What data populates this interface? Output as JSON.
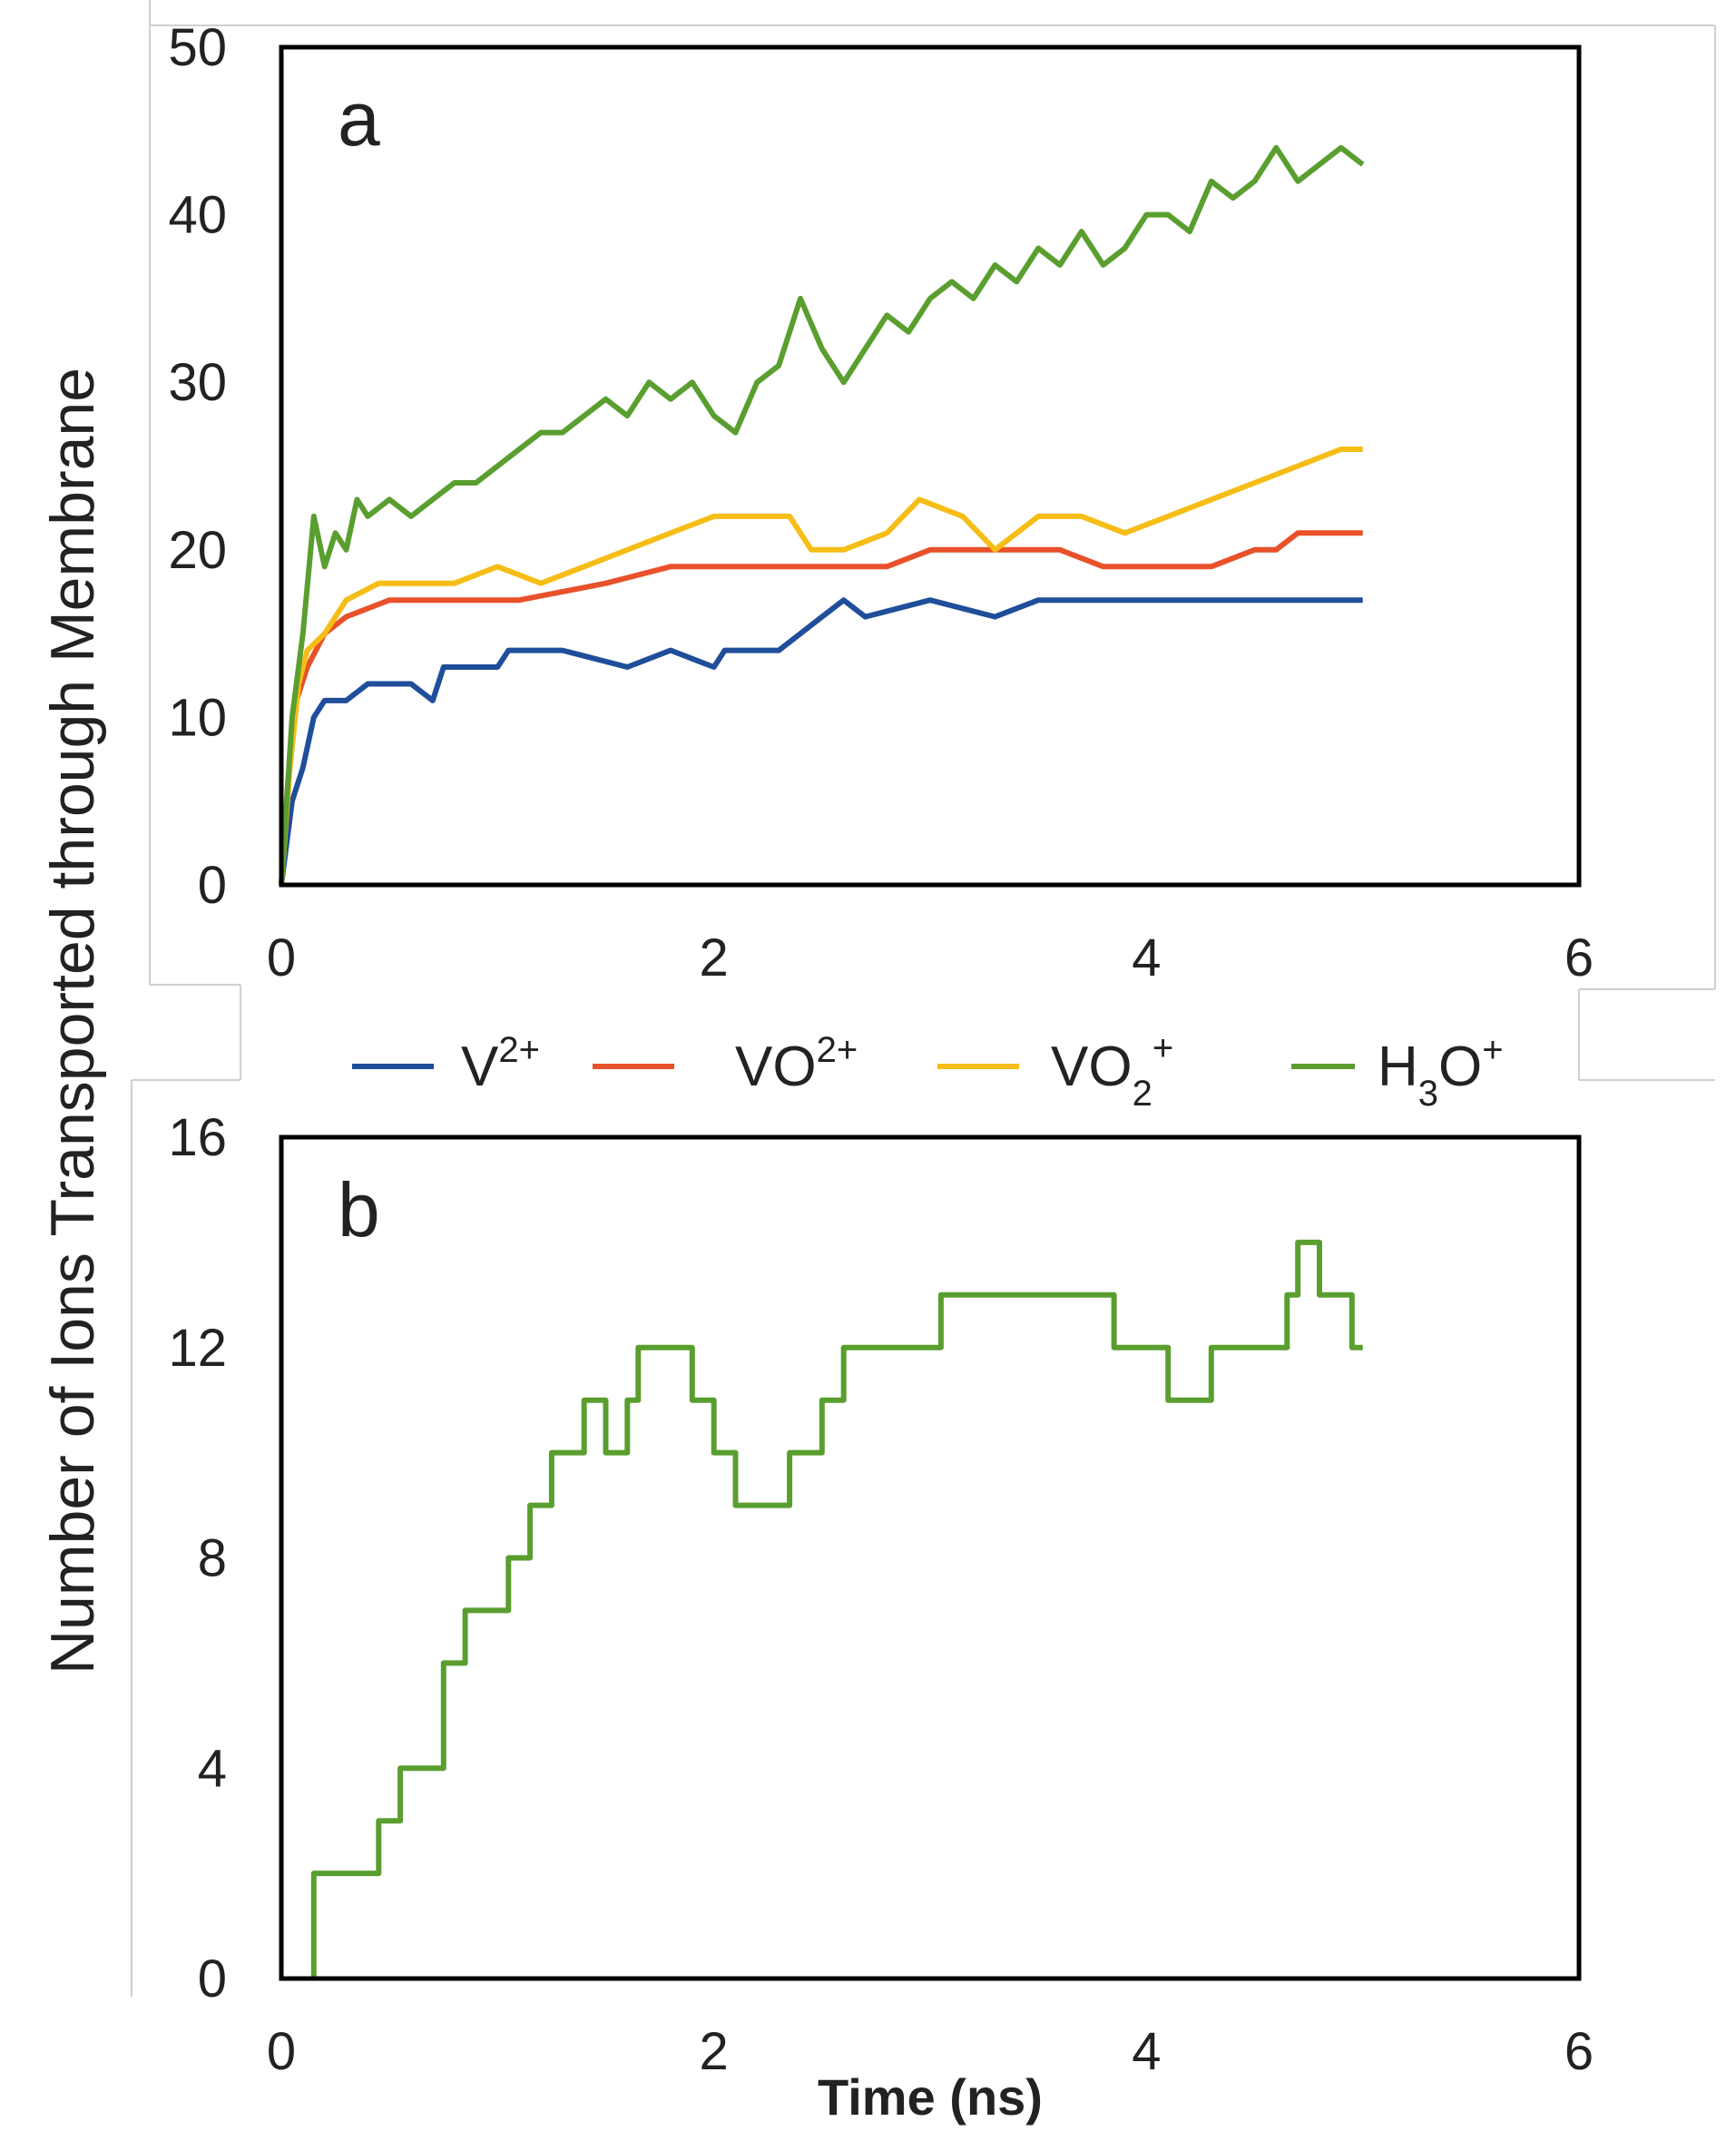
{
  "figure": {
    "ylabel": "Number of Ions Transported through Membrane",
    "xlabel": "Time (ns)"
  },
  "legend": [
    {
      "base": "V",
      "sub": "",
      "sup": "2+",
      "color": "#1f4e9a"
    },
    {
      "base": "VO",
      "sub": "",
      "sup": "2+",
      "color": "#e8512a"
    },
    {
      "base": "VO",
      "sub": "2",
      "sup": "+",
      "color": "#f6bd16"
    },
    {
      "base": "H",
      "sub": "3",
      "sup": "+",
      "base2": "O",
      "color": "#5a9e2f"
    }
  ],
  "chart_data": [
    {
      "type": "line",
      "panel_label": "a",
      "xlim": [
        0,
        6
      ],
      "ylim": [
        0,
        50
      ],
      "xticks": [
        0,
        2,
        4,
        6
      ],
      "yticks": [
        0,
        10,
        20,
        30,
        40,
        50
      ],
      "xlabel": "Time (ns)",
      "ylabel": "Number of Ions Transported through Membrane",
      "series": [
        {
          "name": "V2+",
          "color": "#1f4e9a",
          "x": [
            0,
            0.05,
            0.1,
            0.15,
            0.2,
            0.3,
            0.4,
            0.6,
            0.7,
            0.75,
            1.0,
            1.05,
            1.3,
            1.6,
            1.8,
            2.0,
            2.05,
            2.3,
            2.4,
            2.5,
            2.6,
            2.7,
            3.0,
            3.3,
            3.5,
            4.0,
            4.5,
            5.0
          ],
          "y": [
            0,
            5,
            7,
            10,
            11,
            11,
            12,
            12,
            11,
            13,
            13,
            14,
            14,
            13,
            14,
            13,
            14,
            14,
            15,
            16,
            17,
            16,
            17,
            16,
            17,
            17,
            17,
            17
          ]
        },
        {
          "name": "VO2+",
          "color": "#e8512a",
          "x": [
            0,
            0.03,
            0.07,
            0.12,
            0.2,
            0.3,
            0.5,
            0.8,
            1.1,
            1.5,
            1.8,
            2.1,
            2.5,
            2.8,
            3.0,
            3.3,
            3.6,
            3.8,
            4.0,
            4.3,
            4.5,
            4.6,
            4.7,
            5.0
          ],
          "y": [
            0,
            6,
            11,
            13,
            15,
            16,
            17,
            17,
            17,
            18,
            19,
            19,
            19,
            19,
            20,
            20,
            20,
            19,
            19,
            19,
            20,
            20,
            21,
            21
          ]
        },
        {
          "name": "VO2 +",
          "color": "#f6bd16",
          "x": [
            0,
            0.04,
            0.08,
            0.12,
            0.2,
            0.3,
            0.45,
            0.6,
            0.8,
            1.0,
            1.2,
            1.4,
            1.6,
            1.8,
            2.0,
            2.2,
            2.35,
            2.45,
            2.6,
            2.8,
            2.95,
            3.15,
            3.3,
            3.5,
            3.7,
            3.9,
            4.1,
            4.3,
            4.5,
            4.7,
            4.9,
            5.0
          ],
          "y": [
            0,
            7,
            12,
            14,
            15,
            17,
            18,
            18,
            18,
            19,
            18,
            19,
            20,
            21,
            22,
            22,
            22,
            20,
            20,
            21,
            23,
            22,
            20,
            22,
            22,
            21,
            22,
            23,
            24,
            25,
            26,
            26
          ]
        },
        {
          "name": "H3O+",
          "color": "#5a9e2f",
          "x": [
            0,
            0.05,
            0.1,
            0.15,
            0.2,
            0.25,
            0.3,
            0.35,
            0.4,
            0.5,
            0.6,
            0.7,
            0.8,
            0.9,
            1.0,
            1.1,
            1.2,
            1.3,
            1.4,
            1.5,
            1.6,
            1.7,
            1.8,
            1.9,
            2.0,
            2.1,
            2.2,
            2.3,
            2.4,
            2.5,
            2.6,
            2.7,
            2.8,
            2.9,
            3.0,
            3.1,
            3.2,
            3.3,
            3.4,
            3.5,
            3.6,
            3.7,
            3.8,
            3.9,
            4.0,
            4.1,
            4.2,
            4.3,
            4.4,
            4.5,
            4.6,
            4.7,
            4.8,
            4.9,
            5.0
          ],
          "y": [
            0,
            10,
            15,
            22,
            19,
            21,
            20,
            23,
            22,
            23,
            22,
            23,
            24,
            24,
            25,
            26,
            27,
            27,
            28,
            29,
            28,
            30,
            29,
            30,
            28,
            27,
            30,
            31,
            35,
            32,
            30,
            32,
            34,
            33,
            35,
            36,
            35,
            37,
            36,
            38,
            37,
            39,
            37,
            38,
            40,
            40,
            39,
            42,
            41,
            42,
            44,
            42,
            43,
            44,
            43
          ]
        }
      ]
    },
    {
      "type": "line",
      "panel_label": "b",
      "xlim": [
        0,
        6
      ],
      "ylim": [
        0,
        16
      ],
      "xticks": [
        0,
        2,
        4,
        6
      ],
      "yticks": [
        0,
        4,
        8,
        12,
        16
      ],
      "xlabel": "Time (ns)",
      "series": [
        {
          "name": "H3O+",
          "color": "#5a9e2f",
          "x": [
            0.15,
            0.15,
            0.45,
            0.45,
            0.55,
            0.55,
            0.75,
            0.75,
            0.85,
            0.85,
            1.05,
            1.05,
            1.15,
            1.15,
            1.25,
            1.25,
            1.4,
            1.4,
            1.5,
            1.5,
            1.6,
            1.6,
            1.65,
            1.65,
            1.9,
            1.9,
            2.0,
            2.0,
            2.1,
            2.1,
            2.35,
            2.35,
            2.5,
            2.5,
            2.6,
            2.6,
            2.75,
            2.75,
            3.05,
            3.05,
            3.2,
            3.2,
            3.6,
            3.6,
            3.85,
            3.85,
            4.1,
            4.1,
            4.3,
            4.3,
            4.45,
            4.45,
            4.65,
            4.65,
            4.7,
            4.7,
            4.8,
            4.8,
            4.95,
            4.95,
            5.0
          ],
          "y": [
            0,
            2,
            2,
            3,
            3,
            4,
            4,
            6,
            6,
            7,
            7,
            8,
            8,
            9,
            9,
            10,
            10,
            11,
            11,
            10,
            10,
            11,
            11,
            12,
            12,
            11,
            11,
            10,
            10,
            9,
            9,
            10,
            10,
            11,
            11,
            12,
            12,
            12,
            12,
            13,
            13,
            13,
            13,
            13,
            13,
            12,
            12,
            11,
            11,
            12,
            12,
            12,
            12,
            13,
            13,
            14,
            14,
            13,
            13,
            12,
            12
          ]
        }
      ]
    }
  ]
}
